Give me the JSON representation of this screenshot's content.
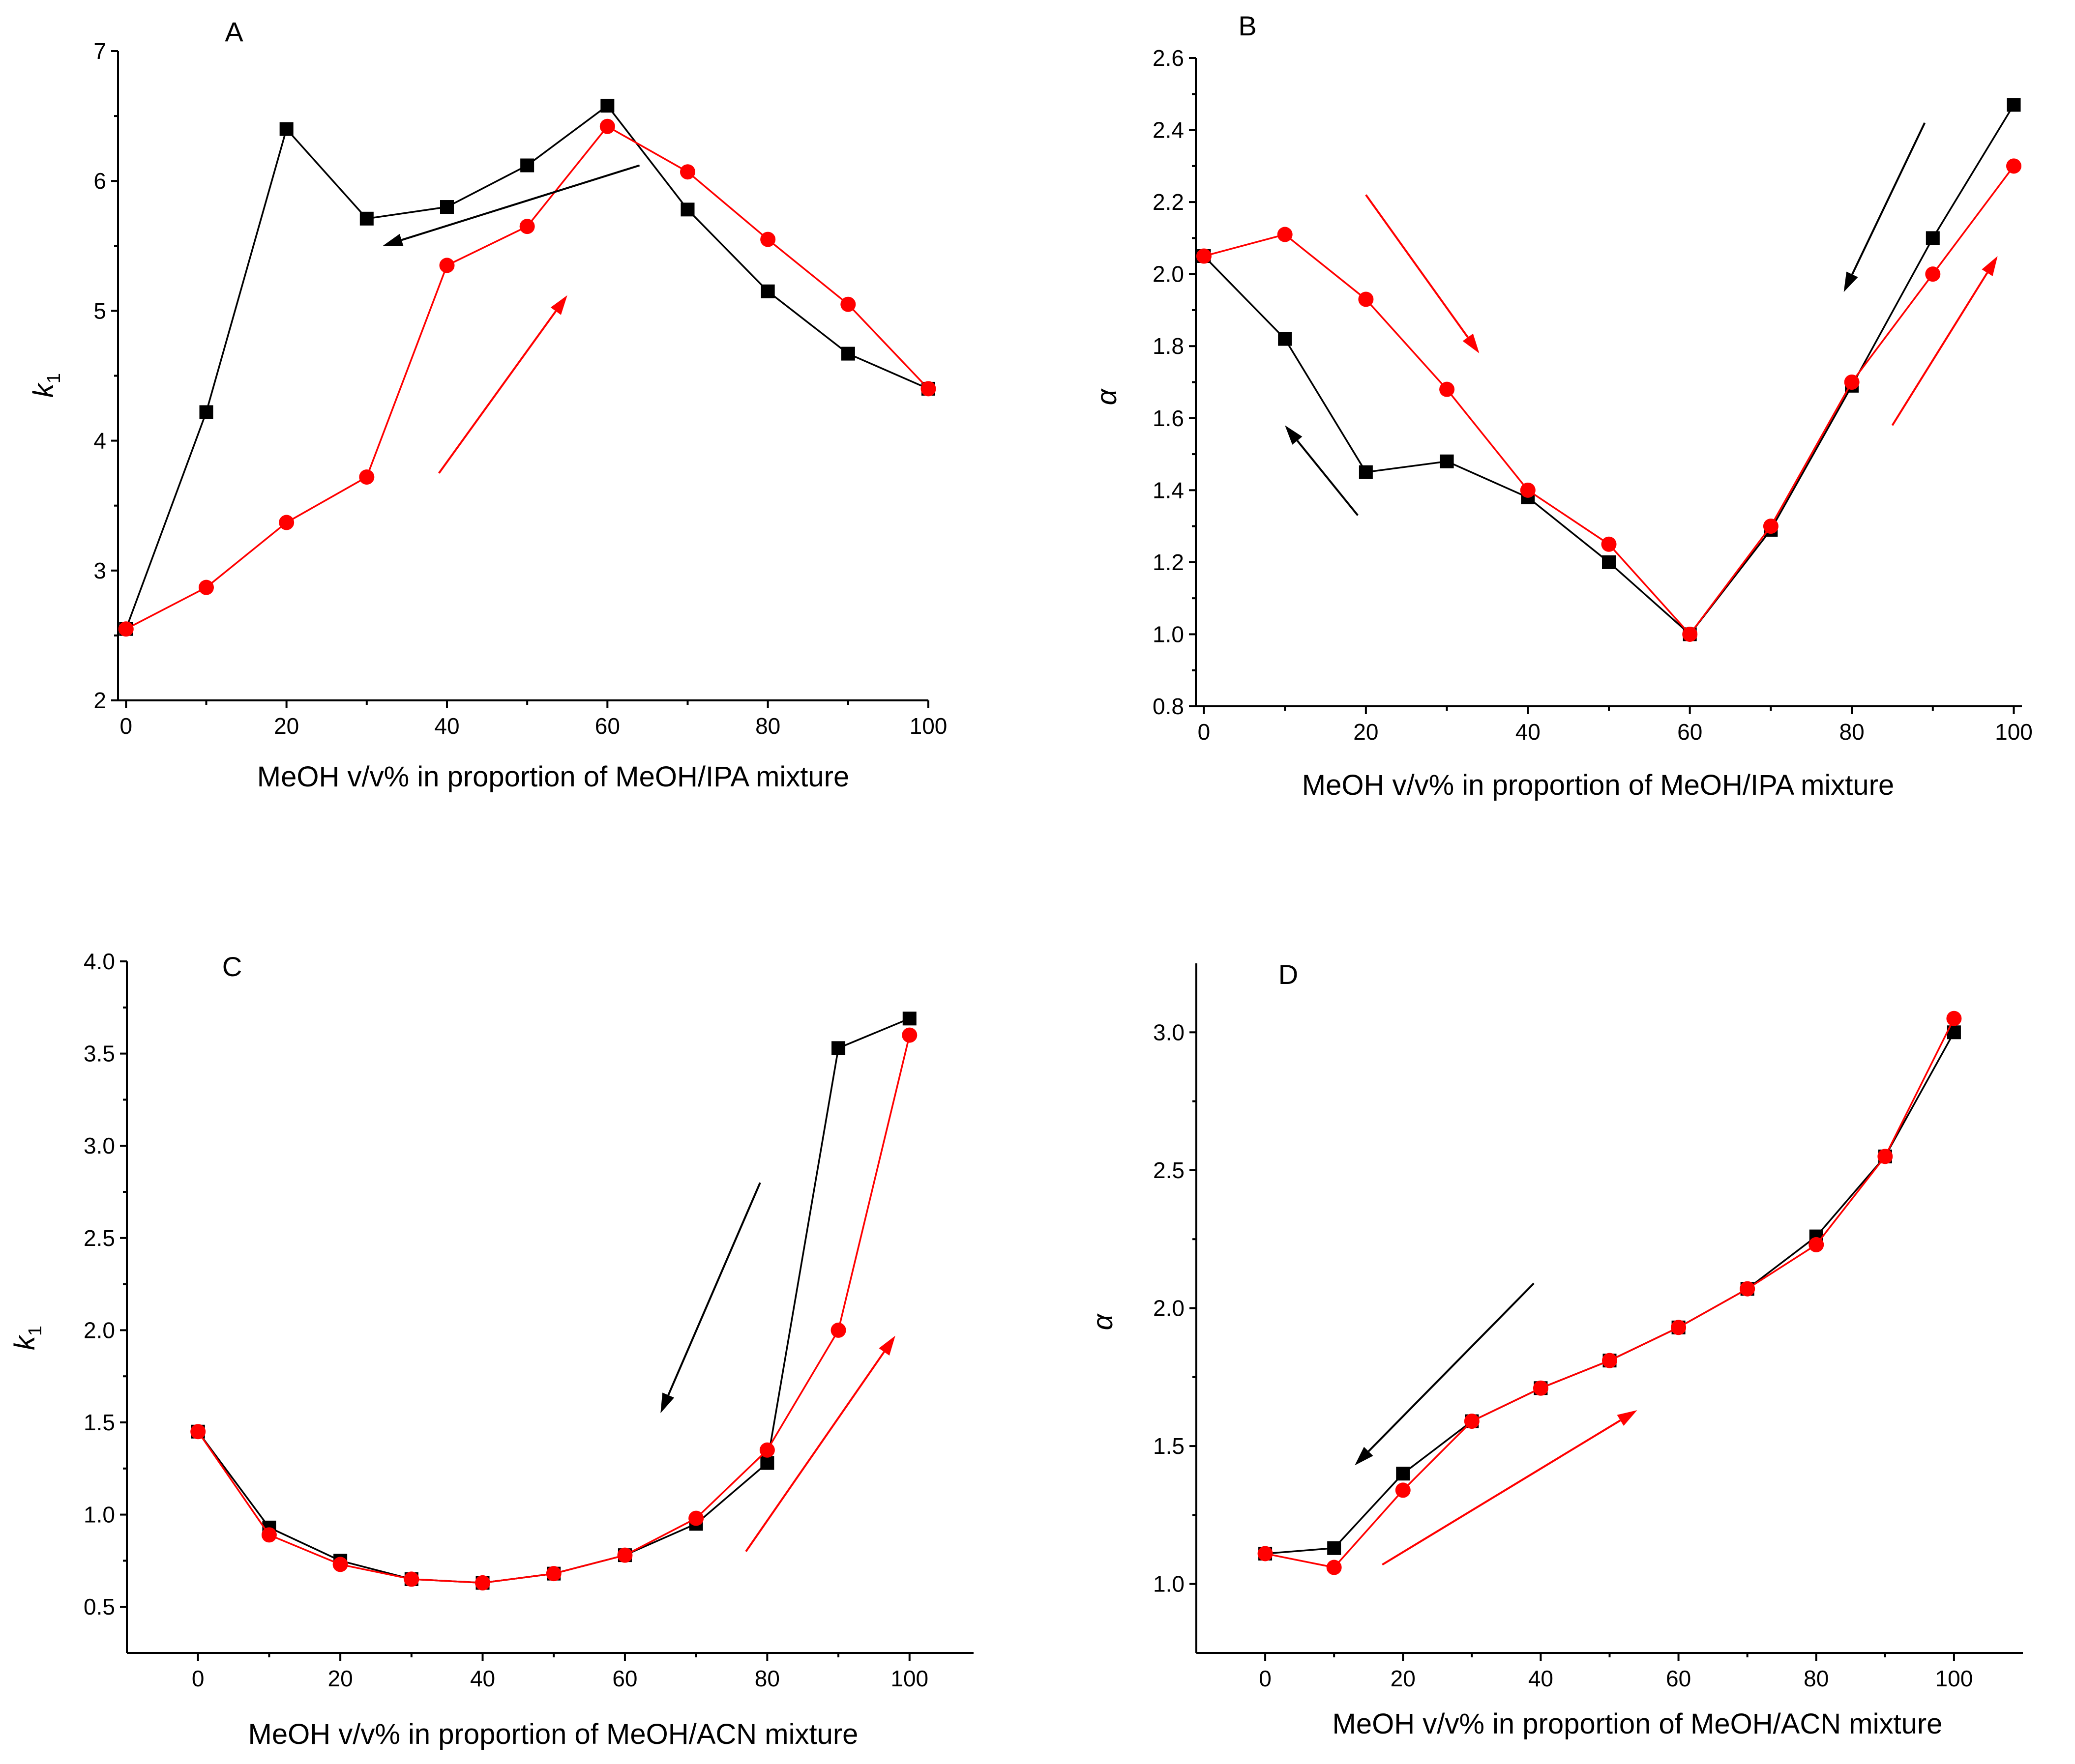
{
  "chart_data": [
    {
      "panel": "A",
      "type": "line",
      "xlabel": "MeOH v/v% in proportion of MeOH/IPA mixture",
      "ylabel": "k1",
      "xlim": [
        -1,
        100
      ],
      "ylim": [
        2,
        7
      ],
      "xticks": [
        0,
        20,
        40,
        60,
        80,
        100
      ],
      "yticks": [
        2,
        3,
        4,
        5,
        6,
        7
      ],
      "ytick_decimals": 0,
      "series": [
        {
          "name": "black-squares",
          "color": "#000000",
          "marker": "square",
          "x": [
            0,
            10,
            20,
            30,
            40,
            50,
            60,
            70,
            80,
            90,
            100
          ],
          "y": [
            2.55,
            4.22,
            6.4,
            5.71,
            5.8,
            6.12,
            6.58,
            5.78,
            5.15,
            4.67,
            4.4
          ]
        },
        {
          "name": "red-circles",
          "color": "#ff0000",
          "marker": "circle",
          "x": [
            0,
            10,
            20,
            30,
            40,
            50,
            60,
            70,
            80,
            90,
            100
          ],
          "y": [
            2.55,
            2.87,
            3.37,
            3.72,
            5.35,
            5.65,
            6.42,
            6.07,
            5.55,
            5.05,
            4.4
          ]
        }
      ],
      "arrows": [
        {
          "color": "#000000",
          "from": [
            64,
            6.12
          ],
          "to": [
            32,
            5.5
          ]
        },
        {
          "color": "#ff0000",
          "from": [
            39,
            3.75
          ],
          "to": [
            55,
            5.12
          ]
        }
      ]
    },
    {
      "panel": "B",
      "type": "line",
      "xlabel": "MeOH v/v% in proportion of MeOH/IPA mixture",
      "ylabel": "α",
      "xlim": [
        -1,
        101
      ],
      "ylim": [
        0.8,
        2.6
      ],
      "xticks": [
        0,
        20,
        40,
        60,
        80,
        100
      ],
      "yticks": [
        0.8,
        1.0,
        1.2,
        1.4,
        1.6,
        1.8,
        2.0,
        2.2,
        2.4,
        2.6
      ],
      "ytick_decimals": 1,
      "series": [
        {
          "name": "black-squares",
          "color": "#000000",
          "marker": "square",
          "x": [
            0,
            10,
            20,
            30,
            40,
            50,
            60,
            70,
            80,
            90,
            100
          ],
          "y": [
            2.05,
            1.82,
            1.45,
            1.48,
            1.38,
            1.2,
            1.0,
            1.29,
            1.69,
            2.1,
            2.47
          ]
        },
        {
          "name": "red-circles",
          "color": "#ff0000",
          "marker": "circle",
          "x": [
            0,
            10,
            20,
            30,
            40,
            50,
            60,
            70,
            80,
            90,
            100
          ],
          "y": [
            2.05,
            2.11,
            1.93,
            1.68,
            1.4,
            1.25,
            1.0,
            1.3,
            1.7,
            2.0,
            2.3
          ]
        }
      ],
      "arrows": [
        {
          "color": "#ff0000",
          "from": [
            20,
            2.22
          ],
          "to": [
            34,
            1.78
          ]
        },
        {
          "color": "#000000",
          "from": [
            19,
            1.33
          ],
          "to": [
            10,
            1.58
          ]
        },
        {
          "color": "#000000",
          "from": [
            89,
            2.42
          ],
          "to": [
            79,
            1.95
          ]
        },
        {
          "color": "#ff0000",
          "from": [
            85,
            1.58
          ],
          "to": [
            98,
            2.05
          ]
        }
      ]
    },
    {
      "panel": "C",
      "type": "line",
      "xlabel": "MeOH v/v% in proportion of MeOH/ACN mixture",
      "ylabel": "k1",
      "xlim": [
        -10,
        109
      ],
      "ylim": [
        0.25,
        4.0
      ],
      "xticks": [
        0,
        20,
        40,
        60,
        80,
        100
      ],
      "yticks": [
        0.5,
        1.0,
        1.5,
        2.0,
        2.5,
        3.0,
        3.5,
        4.0
      ],
      "ytick_decimals": 1,
      "series": [
        {
          "name": "black-squares",
          "color": "#000000",
          "marker": "square",
          "x": [
            0,
            10,
            20,
            30,
            40,
            50,
            60,
            70,
            80,
            90,
            100
          ],
          "y": [
            1.45,
            0.93,
            0.75,
            0.65,
            0.63,
            0.68,
            0.78,
            0.95,
            1.28,
            3.53,
            3.69
          ]
        },
        {
          "name": "red-circles",
          "color": "#ff0000",
          "marker": "circle",
          "x": [
            0,
            10,
            20,
            30,
            40,
            50,
            60,
            70,
            80,
            90,
            100
          ],
          "y": [
            1.45,
            0.89,
            0.73,
            0.65,
            0.63,
            0.68,
            0.78,
            0.98,
            1.35,
            2.0,
            3.6
          ]
        }
      ],
      "arrows": [
        {
          "color": "#000000",
          "from": [
            79,
            2.8
          ],
          "to": [
            65,
            1.55
          ]
        },
        {
          "color": "#ff0000",
          "from": [
            77,
            0.8
          ],
          "to": [
            98,
            1.97
          ]
        }
      ]
    },
    {
      "panel": "D",
      "type": "line",
      "xlabel": "MeOH v/v% in proportion of MeOH/ACN mixture",
      "ylabel": "α",
      "xlim": [
        -10,
        110
      ],
      "ylim": [
        0.75,
        3.25
      ],
      "xticks": [
        0,
        20,
        40,
        60,
        80,
        100
      ],
      "yticks": [
        1.0,
        1.5,
        2.0,
        2.5,
        3.0
      ],
      "ytick_decimals": 1,
      "series": [
        {
          "name": "black-squares",
          "color": "#000000",
          "marker": "square",
          "x": [
            0,
            10,
            20,
            30,
            40,
            50,
            60,
            70,
            80,
            90,
            100
          ],
          "y": [
            1.11,
            1.13,
            1.4,
            1.59,
            1.71,
            1.81,
            1.93,
            2.07,
            2.26,
            2.55,
            3.0
          ]
        },
        {
          "name": "red-circles",
          "color": "#ff0000",
          "marker": "circle",
          "x": [
            0,
            10,
            20,
            30,
            40,
            50,
            60,
            70,
            80,
            90,
            100
          ],
          "y": [
            1.11,
            1.06,
            1.34,
            1.59,
            1.71,
            1.81,
            1.93,
            2.07,
            2.23,
            2.55,
            3.05
          ]
        }
      ],
      "arrows": [
        {
          "color": "#000000",
          "from": [
            39,
            2.09
          ],
          "to": [
            13,
            1.43
          ]
        },
        {
          "color": "#ff0000",
          "from": [
            17,
            1.07
          ],
          "to": [
            54,
            1.63
          ]
        }
      ]
    }
  ]
}
